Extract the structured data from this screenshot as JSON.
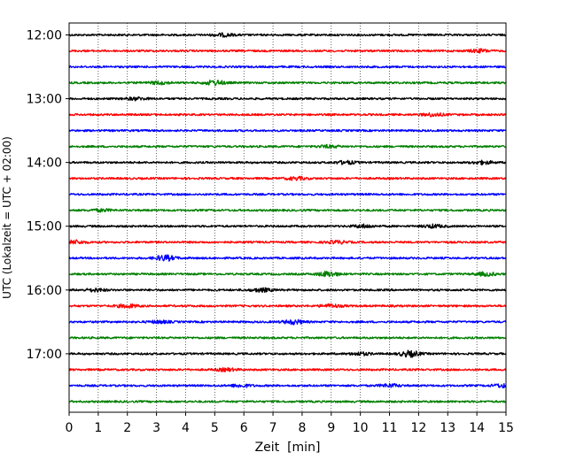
{
  "chart_data": {
    "type": "line",
    "title": "",
    "xlabel": "Zeit  [min]",
    "ylabel": "UTC (Lokalzeit = UTC + 02:00)",
    "xlim": [
      0,
      15
    ],
    "x_ticks": [
      "0",
      "1",
      "2",
      "3",
      "4",
      "5",
      "6",
      "7",
      "8",
      "9",
      "10",
      "11",
      "12",
      "13",
      "14",
      "15"
    ],
    "y_ticks": [
      "12:00",
      "13:00",
      "14:00",
      "15:00",
      "16:00",
      "17:00"
    ],
    "grid": "vertical dotted lines at each minute",
    "trace_interval_minutes": 15,
    "colors": [
      "#000000",
      "#ff0000",
      "#0000ff",
      "#008000"
    ],
    "series": [
      {
        "start": "12:00",
        "color": "#000000",
        "events": [
          [
            5.3,
            1.5
          ]
        ]
      },
      {
        "start": "12:15",
        "color": "#ff0000",
        "events": [
          [
            14.1,
            1.5
          ]
        ]
      },
      {
        "start": "12:30",
        "color": "#0000ff",
        "events": []
      },
      {
        "start": "12:45",
        "color": "#008000",
        "events": [
          [
            3.1,
            1.4
          ],
          [
            5.0,
            2.5
          ]
        ]
      },
      {
        "start": "13:00",
        "color": "#000000",
        "events": [
          [
            2.3,
            1.3
          ]
        ]
      },
      {
        "start": "13:15",
        "color": "#ff0000",
        "events": [
          [
            12.5,
            1.6
          ]
        ]
      },
      {
        "start": "13:30",
        "color": "#0000ff",
        "events": []
      },
      {
        "start": "13:45",
        "color": "#008000",
        "events": [
          [
            8.9,
            1.3
          ]
        ]
      },
      {
        "start": "14:00",
        "color": "#000000",
        "events": [
          [
            9.5,
            1.6
          ],
          [
            14.2,
            1.6
          ]
        ]
      },
      {
        "start": "14:15",
        "color": "#ff0000",
        "events": [
          [
            7.8,
            1.5
          ]
        ]
      },
      {
        "start": "14:30",
        "color": "#0000ff",
        "events": []
      },
      {
        "start": "14:45",
        "color": "#008000",
        "events": [
          [
            1.1,
            1.2
          ]
        ]
      },
      {
        "start": "15:00",
        "color": "#000000",
        "events": [
          [
            10.1,
            1.6
          ],
          [
            12.5,
            1.6
          ]
        ]
      },
      {
        "start": "15:15",
        "color": "#ff0000",
        "events": [
          [
            0.2,
            1.8
          ],
          [
            9.2,
            1.4
          ]
        ]
      },
      {
        "start": "15:30",
        "color": "#0000ff",
        "events": [
          [
            3.3,
            2.8
          ]
        ]
      },
      {
        "start": "15:45",
        "color": "#008000",
        "events": [
          [
            8.9,
            2.6
          ],
          [
            14.3,
            1.8
          ]
        ]
      },
      {
        "start": "16:00",
        "color": "#000000",
        "events": [
          [
            0.9,
            1.5
          ],
          [
            6.6,
            1.8
          ]
        ]
      },
      {
        "start": "16:15",
        "color": "#ff0000",
        "events": [
          [
            2.0,
            1.8
          ],
          [
            9.0,
            1.6
          ]
        ]
      },
      {
        "start": "16:30",
        "color": "#0000ff",
        "events": [
          [
            7.7,
            2.2
          ],
          [
            3.1,
            1.3
          ]
        ]
      },
      {
        "start": "16:45",
        "color": "#008000",
        "events": []
      },
      {
        "start": "17:00",
        "color": "#000000",
        "events": [
          [
            11.7,
            3.0
          ],
          [
            10.0,
            1.5
          ]
        ]
      },
      {
        "start": "17:15",
        "color": "#ff0000",
        "events": [
          [
            5.4,
            1.4
          ]
        ]
      },
      {
        "start": "17:30",
        "color": "#0000ff",
        "events": [
          [
            5.9,
            1.5
          ],
          [
            11.0,
            1.6
          ],
          [
            14.9,
            1.8
          ]
        ]
      },
      {
        "start": "17:45",
        "color": "#008000",
        "events": []
      }
    ]
  }
}
